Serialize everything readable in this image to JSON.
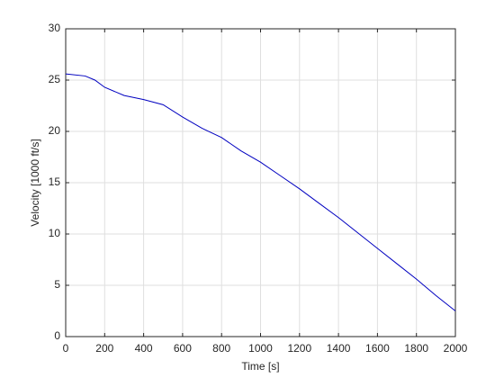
{
  "chart_data": {
    "type": "line",
    "xlabel": "Time [s]",
    "ylabel": "Velocity [1000 ft/s]",
    "x": [
      0,
      100,
      150,
      200,
      300,
      400,
      500,
      600,
      700,
      800,
      900,
      1000,
      1100,
      1200,
      1300,
      1400,
      1500,
      1600,
      1700,
      1800,
      1900,
      2000
    ],
    "values": [
      25.6,
      25.4,
      25.0,
      24.3,
      23.5,
      23.1,
      22.6,
      21.4,
      20.3,
      19.4,
      18.1,
      17.0,
      15.7,
      14.4,
      13.0,
      11.6,
      10.1,
      8.6,
      7.1,
      5.6,
      4.0,
      2.5
    ],
    "color": "#0000c0",
    "xlim": [
      0,
      2000
    ],
    "xticks": [
      0,
      200,
      400,
      600,
      800,
      1000,
      1200,
      1400,
      1600,
      1800,
      2000
    ],
    "ylim": [
      0,
      30
    ],
    "yticks": [
      0,
      5,
      10,
      15,
      20,
      25,
      30
    ],
    "grid": true
  }
}
